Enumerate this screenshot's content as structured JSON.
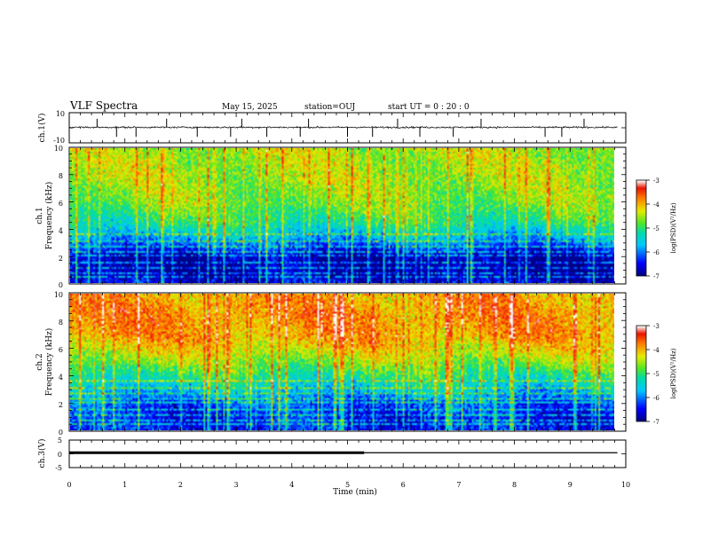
{
  "header": {
    "title": "VLF Spectra",
    "date": "May 15, 2025",
    "station": "station=OUJ",
    "start": "start  UT =   0 : 20 : 0"
  },
  "chart_data": [
    {
      "type": "line",
      "name": "ch1-waveform",
      "ylabel": "ch.1(V)",
      "ylim": [
        -10,
        10
      ],
      "y_ticks": [
        "10",
        "-10"
      ],
      "xlim": [
        0,
        10
      ],
      "baseline": 0.3,
      "spike_times": [
        0.5,
        0.85,
        1.2,
        1.75,
        2.3,
        2.9,
        3.1,
        3.55,
        4.15,
        4.3,
        5.0,
        5.45,
        5.9,
        6.3,
        6.9,
        7.4,
        8.55,
        8.85,
        9.25
      ]
    },
    {
      "type": "heatmap",
      "name": "ch1-spectrogram",
      "ylabel": "ch.1\nFrequency (kHz)",
      "ylim": [
        0,
        10
      ],
      "y_ticks": [
        "0",
        "2",
        "4",
        "6",
        "8",
        "10"
      ],
      "xlim": [
        0,
        9.85
      ],
      "colorbar": {
        "label": "log(PSD)(V²/Hz)",
        "range": [
          -7,
          -3
        ],
        "ticks": [
          "-3",
          "-4",
          "-5",
          "-6",
          "-7"
        ]
      },
      "profile": [
        [
          0,
          -6.6
        ],
        [
          0.5,
          -6.9
        ],
        [
          1.2,
          -6.9
        ],
        [
          2.0,
          -6.8
        ],
        [
          2.8,
          -6.1
        ],
        [
          3.5,
          -5.6
        ],
        [
          4.5,
          -5.0
        ],
        [
          6.0,
          -4.6
        ],
        [
          8.0,
          -4.4
        ],
        [
          10.0,
          -4.4
        ]
      ]
    },
    {
      "type": "heatmap",
      "name": "ch2-spectrogram",
      "ylabel": "ch.2\nFrequency (kHz)",
      "ylim": [
        0,
        10
      ],
      "y_ticks": [
        "0",
        "2",
        "4",
        "6",
        "8",
        "10"
      ],
      "xlim": [
        0,
        9.85
      ],
      "colorbar": {
        "label": "log(PSD)(V²/Hz)",
        "range": [
          -7,
          -3
        ],
        "ticks": [
          "-3",
          "-4",
          "-5",
          "-6",
          "-7"
        ]
      },
      "profile": [
        [
          0,
          -6.4
        ],
        [
          1.0,
          -6.4
        ],
        [
          2.0,
          -6.1
        ],
        [
          3.0,
          -5.5
        ],
        [
          4.0,
          -5.0
        ],
        [
          5.0,
          -4.5
        ],
        [
          6.0,
          -4.1
        ],
        [
          7.0,
          -3.8
        ],
        [
          8.5,
          -3.7
        ],
        [
          10.0,
          -3.8
        ]
      ]
    },
    {
      "type": "line",
      "name": "ch3-trace",
      "ylabel": "ch.3(V)",
      "ylim": [
        -5,
        5
      ],
      "y_ticks": [
        "5",
        "0",
        "-5"
      ],
      "xlim": [
        0,
        10
      ],
      "x_ticks": [
        "0",
        "1",
        "2",
        "3",
        "4",
        "5",
        "6",
        "7",
        "8",
        "9",
        "10"
      ],
      "xlabel": "Time  (min)",
      "segments": [
        {
          "x": [
            0,
            5.3
          ],
          "y": 0.4,
          "style": "thick"
        },
        {
          "x": [
            5.3,
            9.85
          ],
          "y": 0.4,
          "style": "thin"
        }
      ]
    }
  ]
}
